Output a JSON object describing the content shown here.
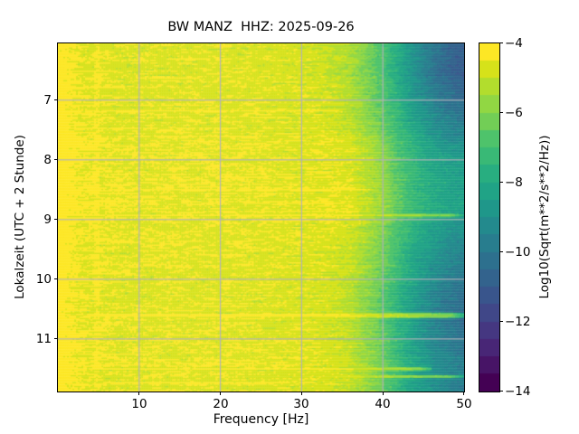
{
  "window": {
    "background": "#ffffff"
  },
  "chart_data": {
    "type": "heatmap",
    "subtype": "spectrogram",
    "title": "BW MANZ  HHZ: 2025-09-26",
    "xlabel": "Frequency [Hz]",
    "ylabel": "Lokalzeit (UTC + 2 Stunde)",
    "colorbar_label": "Log10(Sqrt(m**2/s**2/Hz))",
    "x_range": [
      0,
      50
    ],
    "x_ticks": [
      10,
      20,
      30,
      40,
      50
    ],
    "x_tick_labels": [
      "10",
      "20",
      "30",
      "40",
      "50"
    ],
    "y_range": [
      6.05,
      11.88
    ],
    "y_ticks": [
      7,
      8,
      9,
      10,
      11
    ],
    "y_tick_labels": [
      "7",
      "8",
      "9",
      "10",
      "11"
    ],
    "value_range": [
      -14,
      -4
    ],
    "colorbar_ticks": [
      -4,
      -6,
      -8,
      -10,
      -12,
      -14
    ],
    "colorbar_tick_labels": [
      "−4",
      "−6",
      "−8",
      "−10",
      "−12",
      "−14"
    ],
    "colormap": "viridis",
    "colormap_levels": 20,
    "grid": true,
    "grid_color": "#b1b1b9",
    "frame_color": "#000000",
    "viridis_stops": [
      "#440154",
      "#471365",
      "#482475",
      "#463480",
      "#414487",
      "#3b528b",
      "#355f8d",
      "#2f6c8e",
      "#2a788e",
      "#25848e",
      "#21918c",
      "#1e9c89",
      "#22a884",
      "#2cb17e",
      "#3fbc73",
      "#54c568",
      "#7ad151",
      "#95d840",
      "#b5de2b",
      "#d8e219",
      "#fde725"
    ],
    "freq_profile_db": [
      [
        0,
        -3.95
      ],
      [
        0.5,
        -4.0
      ],
      [
        1,
        -4.15
      ],
      [
        2,
        -4.35
      ],
      [
        3,
        -4.5
      ],
      [
        5,
        -4.55
      ],
      [
        8,
        -4.62
      ],
      [
        12,
        -4.6
      ],
      [
        18,
        -4.6
      ],
      [
        24,
        -4.62
      ],
      [
        28,
        -4.66
      ],
      [
        32,
        -4.72
      ],
      [
        34,
        -4.8
      ],
      [
        36,
        -5.0
      ],
      [
        38,
        -5.6
      ],
      [
        40,
        -6.3
      ],
      [
        42,
        -7.3
      ],
      [
        44,
        -8.2
      ],
      [
        46,
        -8.9
      ],
      [
        48,
        -9.4
      ],
      [
        50,
        -9.7
      ]
    ],
    "time_mod_low": [
      [
        6.05,
        -0.07
      ],
      [
        7.0,
        -0.03
      ],
      [
        8.0,
        0.07
      ],
      [
        8.8,
        0.1
      ],
      [
        9.5,
        0.02
      ],
      [
        10.2,
        -0.04
      ],
      [
        10.8,
        -0.02
      ],
      [
        11.3,
        0.06
      ],
      [
        11.88,
        0.04
      ]
    ],
    "time_mod_high": [
      [
        6.05,
        -0.45
      ],
      [
        6.5,
        -0.55
      ],
      [
        7.2,
        -0.2
      ],
      [
        8.0,
        0.4
      ],
      [
        8.8,
        0.5
      ],
      [
        9.4,
        0.1
      ],
      [
        10.0,
        -0.1
      ],
      [
        10.5,
        -0.3
      ],
      [
        11.0,
        -0.2
      ],
      [
        11.5,
        0.0
      ],
      [
        11.88,
        -0.1
      ]
    ],
    "vertical_line": {
      "freq_hz": 4.8,
      "halfwidth_hz": 0.3,
      "boost": 0.2
    },
    "events": [
      {
        "t": 6.9,
        "f0": 0,
        "f1": 28,
        "level": -4.35,
        "hw": 0.03
      },
      {
        "t": 7.06,
        "f0": 0,
        "f1": 30,
        "level": -4.4,
        "hw": 0.03
      },
      {
        "t": 7.17,
        "f0": 2,
        "f1": 36,
        "level": -4.2,
        "hw": 0.032
      },
      {
        "t": 8.5,
        "f0": 5,
        "f1": 40,
        "level": -4.15,
        "hw": 0.03
      },
      {
        "t": 8.63,
        "f0": 8,
        "f1": 34,
        "level": -4.35,
        "hw": 0.028
      },
      {
        "t": 8.85,
        "f0": 12,
        "f1": 32,
        "level": -4.4,
        "hw": 0.025
      },
      {
        "t": 8.93,
        "f0": 0,
        "f1": 50,
        "level": -4.25,
        "hw": 0.028
      },
      {
        "t": 9.4,
        "f0": 6,
        "f1": 22,
        "level": -4.3,
        "hw": 0.028
      },
      {
        "t": 9.63,
        "f0": 0,
        "f1": 18,
        "level": -4.4,
        "hw": 0.025
      },
      {
        "t": 9.83,
        "f0": 14,
        "f1": 32,
        "level": -4.4,
        "hw": 0.025
      },
      {
        "t": 10.42,
        "f0": 10,
        "f1": 28,
        "level": -4.4,
        "hw": 0.025
      },
      {
        "t": 10.61,
        "f0": 2,
        "f1": 50,
        "level": -4.05,
        "hw": 0.045
      },
      {
        "t": 10.72,
        "f0": 2,
        "f1": 26,
        "level": -4.35,
        "hw": 0.025
      },
      {
        "t": 11.25,
        "f0": 1,
        "f1": 13,
        "level": -4.25,
        "hw": 0.028
      },
      {
        "t": 11.5,
        "f0": 2,
        "f1": 46,
        "level": -4.25,
        "hw": 0.028
      },
      {
        "t": 11.63,
        "f0": 2,
        "f1": 50,
        "level": -4.3,
        "hw": 0.028
      },
      {
        "t": 11.73,
        "f0": 4,
        "f1": 30,
        "level": -4.4,
        "hw": 0.025
      }
    ],
    "noise": {
      "seed": 42,
      "row_jitter": 0.12,
      "cell_sigma": 0.22,
      "persistence": 0.72,
      "bright_speck_prob": 0.035,
      "bright_speck_boost": 0.35,
      "dark_speck_prob": 0.035,
      "dark_speck_drop": 0.28
    }
  }
}
